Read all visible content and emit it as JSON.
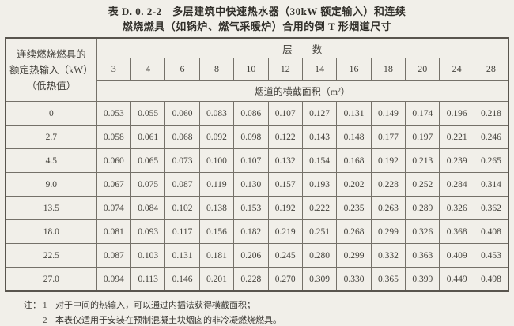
{
  "title": {
    "line1": "表 D. 0. 2-2　多层建筑中快速热水器（30kW 额定输入）和连续",
    "line2": "燃烧燃具（如锅炉、燃气采暖炉）合用的倒 T 形烟道尺寸"
  },
  "table": {
    "corner_header_lines": [
      "连续燃烧燃具的",
      "额定热输入（kW）",
      "（低热值）"
    ],
    "floors_header": "层　　数",
    "floor_columns": [
      "3",
      "4",
      "6",
      "8",
      "10",
      "12",
      "14",
      "16",
      "18",
      "20",
      "24",
      "28"
    ],
    "area_header": "烟道的横截面积（m²）",
    "rows": [
      {
        "heat_input": "0",
        "areas": [
          "0.053",
          "0.055",
          "0.060",
          "0.083",
          "0.086",
          "0.107",
          "0.127",
          "0.131",
          "0.149",
          "0.174",
          "0.196",
          "0.218"
        ]
      },
      {
        "heat_input": "2.7",
        "areas": [
          "0.058",
          "0.061",
          "0.068",
          "0.092",
          "0.098",
          "0.122",
          "0.143",
          "0.148",
          "0.177",
          "0.197",
          "0.221",
          "0.246"
        ]
      },
      {
        "heat_input": "4.5",
        "areas": [
          "0.060",
          "0.065",
          "0.073",
          "0.100",
          "0.107",
          "0.132",
          "0.154",
          "0.168",
          "0.192",
          "0.213",
          "0.239",
          "0.265"
        ]
      },
      {
        "heat_input": "9.0",
        "areas": [
          "0.067",
          "0.075",
          "0.087",
          "0.119",
          "0.130",
          "0.157",
          "0.193",
          "0.202",
          "0.228",
          "0.252",
          "0.284",
          "0.314"
        ]
      },
      {
        "heat_input": "13.5",
        "areas": [
          "0.074",
          "0.084",
          "0.102",
          "0.138",
          "0.153",
          "0.192",
          "0.222",
          "0.235",
          "0.263",
          "0.289",
          "0.326",
          "0.362"
        ]
      },
      {
        "heat_input": "18.0",
        "areas": [
          "0.081",
          "0.093",
          "0.117",
          "0.156",
          "0.182",
          "0.219",
          "0.251",
          "0.268",
          "0.299",
          "0.326",
          "0.368",
          "0.408"
        ]
      },
      {
        "heat_input": "22.5",
        "areas": [
          "0.087",
          "0.103",
          "0.131",
          "0.181",
          "0.206",
          "0.245",
          "0.280",
          "0.299",
          "0.332",
          "0.363",
          "0.409",
          "0.453"
        ]
      },
      {
        "heat_input": "27.0",
        "areas": [
          "0.094",
          "0.113",
          "0.146",
          "0.201",
          "0.228",
          "0.270",
          "0.309",
          "0.330",
          "0.365",
          "0.399",
          "0.449",
          "0.498"
        ]
      }
    ]
  },
  "notes": {
    "label": "注：",
    "items": [
      {
        "num": "1",
        "text": "对于中间的热输入，可以通过内插法获得横截面积；"
      },
      {
        "num": "2",
        "text": "本表仅适用于安装在预制混凝土块烟囱的非冷凝燃烧燃具。"
      }
    ]
  }
}
